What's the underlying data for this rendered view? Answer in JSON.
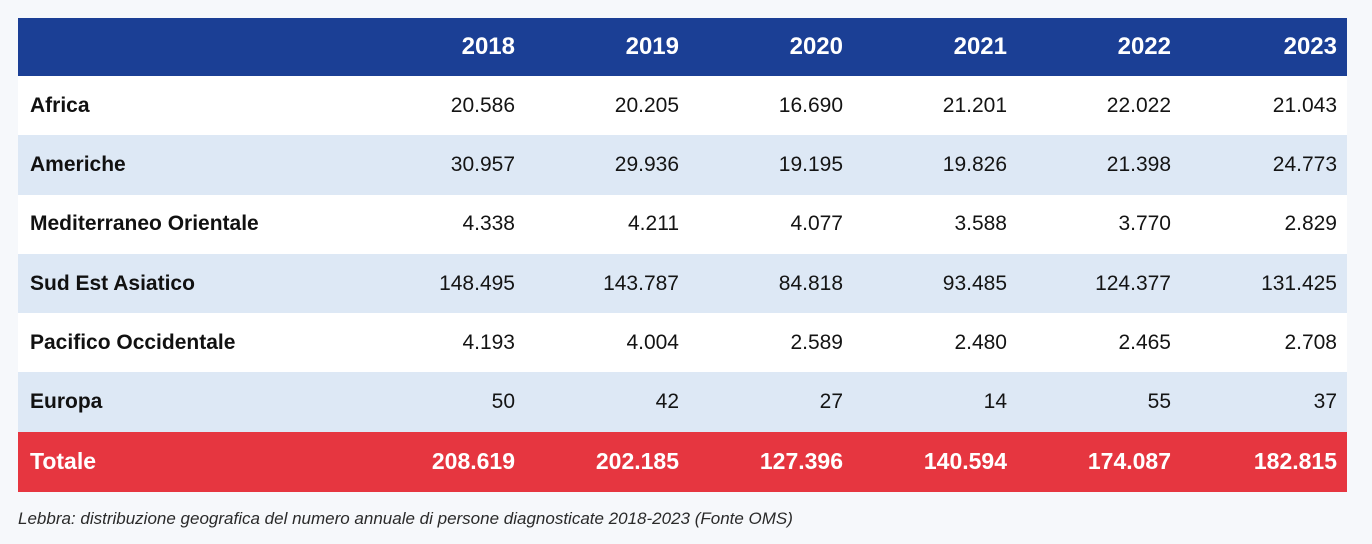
{
  "table": {
    "header": {
      "region_label": "",
      "years": [
        "2018",
        "2019",
        "2020",
        "2021",
        "2022",
        "2023"
      ]
    },
    "rows": [
      {
        "region": "Africa",
        "values": [
          "20.586",
          "20.205",
          "16.690",
          "21.201",
          "22.022",
          "21.043"
        ]
      },
      {
        "region": "Americhe",
        "values": [
          "30.957",
          "29.936",
          "19.195",
          "19.826",
          "21.398",
          "24.773"
        ]
      },
      {
        "region": "Mediterraneo Orientale",
        "values": [
          "4.338",
          "4.211",
          "4.077",
          "3.588",
          "3.770",
          "2.829"
        ]
      },
      {
        "region": "Sud Est Asiatico",
        "values": [
          "148.495",
          "143.787",
          "84.818",
          "93.485",
          "124.377",
          "131.425"
        ]
      },
      {
        "region": "Pacifico Occidentale",
        "values": [
          "4.193",
          "4.004",
          "2.589",
          "2.480",
          "2.465",
          "2.708"
        ]
      },
      {
        "region": "Europa",
        "values": [
          "50",
          "42",
          "27",
          "14",
          "55",
          "37"
        ]
      }
    ],
    "total": {
      "label": "Totale",
      "values": [
        "208.619",
        "202.185",
        "127.396",
        "140.594",
        "174.087",
        "182.815"
      ]
    }
  },
  "caption": "Lebbra: distribuzione geografica del numero annuale di persone diagnosticate 2018-2023 (Fonte OMS)",
  "colors": {
    "header_bg": "#1b3f95",
    "row_alt_bg": "#dde8f5",
    "total_bg": "#e63640"
  }
}
